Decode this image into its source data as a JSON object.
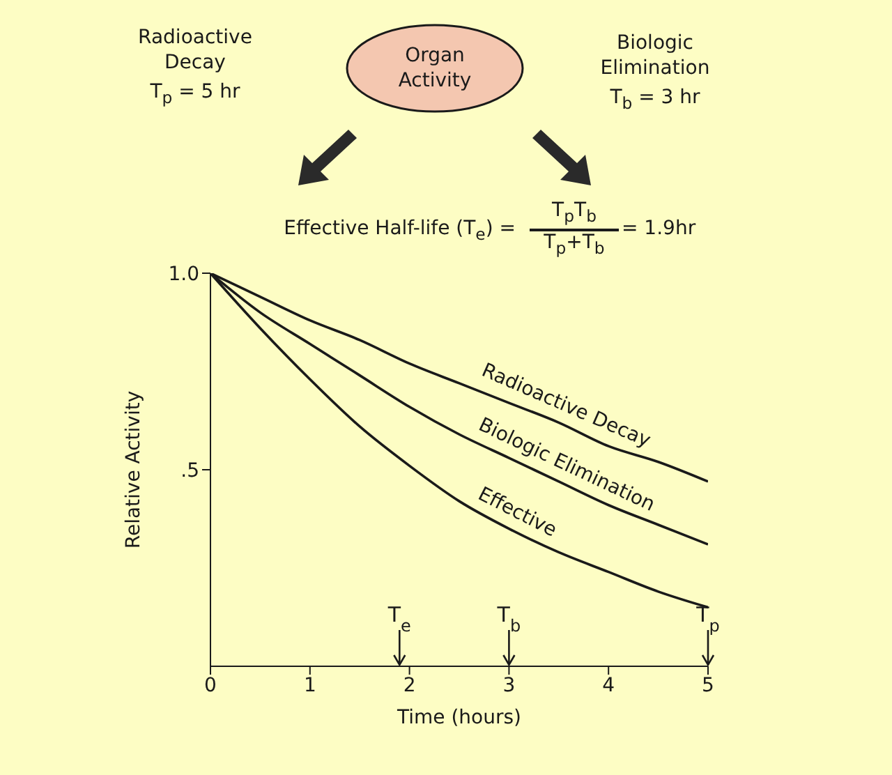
{
  "chart_data": {
    "type": "line",
    "xlabel": "Time (hours)",
    "ylabel": "Relative Activity",
    "x": [
      0,
      0.5,
      1,
      1.5,
      2,
      2.5,
      3,
      3.5,
      4,
      4.5,
      5
    ],
    "series": [
      {
        "name": "Radioactive Decay",
        "color": "#1a1a1a",
        "values": [
          1,
          0.94,
          0.88,
          0.83,
          0.77,
          0.72,
          0.67,
          0.62,
          0.56,
          0.52,
          0.47
        ]
      },
      {
        "name": "Biologic Elimination",
        "color": "#1a1a1a",
        "values": [
          1,
          0.9,
          0.82,
          0.74,
          0.66,
          0.59,
          0.53,
          0.47,
          0.41,
          0.36,
          0.31
        ]
      },
      {
        "name": "Effective",
        "color": "#1a1a1a",
        "values": [
          1,
          0.86,
          0.73,
          0.61,
          0.51,
          0.42,
          0.35,
          0.29,
          0.24,
          0.19,
          0.15
        ]
      }
    ],
    "xlim": [
      0,
      5
    ],
    "xticks": [
      0,
      1,
      2,
      3,
      4,
      5
    ],
    "ylim": [
      0,
      1
    ],
    "yticks": [
      {
        "value": 0.5,
        "label": ".5"
      },
      {
        "value": 1,
        "label": "1.0"
      }
    ],
    "grid": false,
    "legend": false,
    "marker": "none",
    "line_style": "solid",
    "annotations": [
      "Radioactive Decay",
      "T$_{p}$ = 5 hr",
      "Organ Activity",
      "Biologic Elimination",
      "T$_{b}$ = 3 hr",
      "Effective Half-life (T$_{e}$) =",
      "T$_{p}$T$_{b}$",
      "T$_{p}$+T$_{b}$",
      "= 1.9hr"
    ],
    "ref_lines": [
      {
        "axis": "x",
        "value": 1.9,
        "label": "T$_{e}$"
      },
      {
        "axis": "x",
        "value": 3,
        "label": "T$_{b}$"
      },
      {
        "axis": "x",
        "value": 5,
        "label": "T$_{p}$"
      }
    ]
  }
}
